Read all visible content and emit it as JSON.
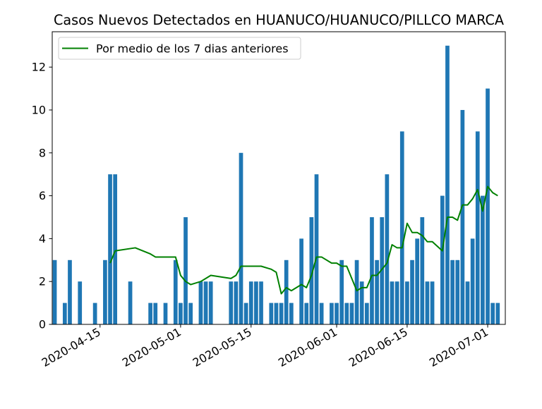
{
  "chart_data": {
    "type": "bar",
    "title": "Casos Nuevos Detectados en HUANUCO/HUANUCO/PILLCO MARCA",
    "xlabel": "",
    "ylabel": "",
    "x_start": "2020-04-06",
    "x_end": "2020-07-04",
    "ylim": [
      0,
      13.65
    ],
    "yticks": [
      0,
      2,
      4,
      6,
      8,
      10,
      12
    ],
    "xticks": [
      {
        "date": "2020-04-15",
        "label": "2020-04-15"
      },
      {
        "date": "2020-05-01",
        "label": "2020-05-01"
      },
      {
        "date": "2020-05-15",
        "label": "2020-05-15"
      },
      {
        "date": "2020-06-01",
        "label": "2020-06-01"
      },
      {
        "date": "2020-06-15",
        "label": "2020-06-15"
      },
      {
        "date": "2020-07-01",
        "label": "2020-07-01"
      }
    ],
    "bar_color": "#1f77b4",
    "line_color": "#008000",
    "legend_position": "upper-left",
    "bars": {
      "dates": [
        "2020-04-06",
        "2020-04-08",
        "2020-04-09",
        "2020-04-11",
        "2020-04-14",
        "2020-04-16",
        "2020-04-17",
        "2020-04-18",
        "2020-04-21",
        "2020-04-25",
        "2020-04-26",
        "2020-04-28",
        "2020-04-30",
        "2020-05-01",
        "2020-05-02",
        "2020-05-03",
        "2020-05-05",
        "2020-05-06",
        "2020-05-07",
        "2020-05-11",
        "2020-05-12",
        "2020-05-13",
        "2020-05-14",
        "2020-05-15",
        "2020-05-16",
        "2020-05-17",
        "2020-05-19",
        "2020-05-20",
        "2020-05-21",
        "2020-05-22",
        "2020-05-23",
        "2020-05-25",
        "2020-05-26",
        "2020-05-27",
        "2020-05-28",
        "2020-05-29",
        "2020-05-31",
        "2020-06-01",
        "2020-06-02",
        "2020-06-03",
        "2020-06-04",
        "2020-06-05",
        "2020-06-06",
        "2020-06-07",
        "2020-06-08",
        "2020-06-09",
        "2020-06-10",
        "2020-06-11",
        "2020-06-12",
        "2020-06-13",
        "2020-06-14",
        "2020-06-15",
        "2020-06-16",
        "2020-06-17",
        "2020-06-18",
        "2020-06-19",
        "2020-06-20",
        "2020-06-22",
        "2020-06-23",
        "2020-06-24",
        "2020-06-25",
        "2020-06-26",
        "2020-06-27",
        "2020-06-28",
        "2020-06-29",
        "2020-06-30",
        "2020-07-01",
        "2020-07-02",
        "2020-07-03"
      ],
      "values": [
        3,
        1,
        3,
        2,
        1,
        3,
        7,
        7,
        2,
        1,
        1,
        1,
        3,
        1,
        5,
        1,
        2,
        2,
        2,
        2,
        2,
        8,
        1,
        2,
        2,
        2,
        1,
        1,
        1,
        3,
        1,
        4,
        1,
        5,
        7,
        1,
        1,
        1,
        3,
        1,
        1,
        3,
        2,
        1,
        5,
        3,
        5,
        7,
        2,
        2,
        9,
        2,
        3,
        4,
        5,
        2,
        2,
        6,
        13,
        3,
        3,
        10,
        2,
        4,
        9,
        6,
        11,
        1,
        1
      ]
    },
    "series": [
      {
        "name": "Por medio de los 7 dias anteriores",
        "dates": [
          "2020-04-17",
          "2020-04-18",
          "2020-04-22",
          "2020-04-25",
          "2020-04-26",
          "2020-04-30",
          "2020-05-01",
          "2020-05-02",
          "2020-05-03",
          "2020-05-05",
          "2020-05-06",
          "2020-05-07",
          "2020-05-11",
          "2020-05-12",
          "2020-05-13",
          "2020-05-17",
          "2020-05-19",
          "2020-05-20",
          "2020-05-21",
          "2020-05-22",
          "2020-05-23",
          "2020-05-25",
          "2020-05-26",
          "2020-05-27",
          "2020-05-28",
          "2020-05-29",
          "2020-05-31",
          "2020-06-01",
          "2020-06-02",
          "2020-06-03",
          "2020-06-04",
          "2020-06-05",
          "2020-06-06",
          "2020-06-07",
          "2020-06-08",
          "2020-06-09",
          "2020-06-10",
          "2020-06-11",
          "2020-06-12",
          "2020-06-13",
          "2020-06-14",
          "2020-06-15",
          "2020-06-16",
          "2020-06-17",
          "2020-06-18",
          "2020-06-19",
          "2020-06-20",
          "2020-06-22",
          "2020-06-23",
          "2020-06-24",
          "2020-06-25",
          "2020-06-26",
          "2020-06-27",
          "2020-06-28",
          "2020-06-29",
          "2020-06-30",
          "2020-07-01",
          "2020-07-02",
          "2020-07-03"
        ],
        "values": [
          2.857,
          3.429,
          3.571,
          3.286,
          3.143,
          3.143,
          2.286,
          2.0,
          1.857,
          2.0,
          2.143,
          2.286,
          2.143,
          2.286,
          2.714,
          2.714,
          2.571,
          2.429,
          1.429,
          1.714,
          1.571,
          1.857,
          1.714,
          2.286,
          3.143,
          3.143,
          2.857,
          2.857,
          2.714,
          2.714,
          2.143,
          1.571,
          1.714,
          1.714,
          2.286,
          2.286,
          2.571,
          2.857,
          3.714,
          3.571,
          3.571,
          4.714,
          4.286,
          4.286,
          4.143,
          3.857,
          3.857,
          3.429,
          5.0,
          5.0,
          4.857,
          5.571,
          5.571,
          5.857,
          6.286,
          5.286,
          6.429,
          6.143,
          6.0
        ]
      }
    ]
  }
}
